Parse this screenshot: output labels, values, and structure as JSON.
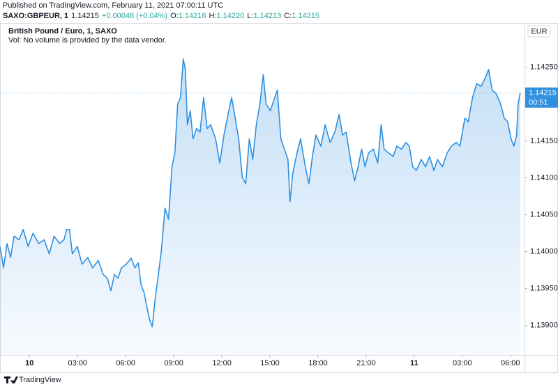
{
  "published": "Published on TradingView.com, February 11, 2021 07:00:11 UTC",
  "legend": {
    "symbol": "SAXO:GBPEUR, 1",
    "last": "1.14215",
    "change": "+0.00048 (+0.04%)",
    "ohlc": [
      {
        "key": "O:",
        "value": "1.14216"
      },
      {
        "key": "H:",
        "value": "1.14220"
      },
      {
        "key": "L:",
        "value": "1.14213"
      },
      {
        "key": "C:",
        "value": "1.14215"
      }
    ]
  },
  "brand": "TradingView",
  "chart_data": {
    "type": "area",
    "title": "British Pound / Euro, 1, SAXO",
    "subtitle": "Vol: No volume is provided by the data vendor.",
    "currency": "EUR",
    "color": "#2f8fe0",
    "price_line": {
      "value": 1.14215,
      "label": "1.14215",
      "countdown": "00:51"
    },
    "x": [
      -1.84,
      -1.62,
      -1.4,
      -1.18,
      -0.96,
      -0.66,
      -0.39,
      -0.09,
      0.22,
      0.57,
      0.92,
      1.23,
      1.53,
      1.88,
      2.15,
      2.32,
      2.5,
      2.67,
      2.98,
      3.28,
      3.63,
      3.94,
      4.29,
      4.6,
      4.86,
      5.08,
      5.3,
      5.52,
      5.74,
      6.04,
      6.35,
      6.57,
      6.79,
      6.96,
      7.14,
      7.31,
      7.49,
      7.66,
      7.84,
      8.01,
      8.23,
      8.45,
      8.67,
      8.89,
      9.07,
      9.24,
      9.42,
      9.59,
      9.72,
      9.85,
      10.03,
      10.2,
      10.42,
      10.64,
      10.86,
      11.08,
      11.3,
      11.61,
      11.87,
      12.13,
      12.39,
      12.61,
      12.83,
      13.05,
      13.27,
      13.49,
      13.71,
      13.93,
      14.15,
      14.37,
      14.58,
      14.76,
      15.02,
      15.24,
      15.46,
      15.68,
      15.9,
      16.12,
      16.25,
      16.42,
      16.69,
      16.91,
      17.21,
      17.43,
      17.65,
      17.87,
      18.18,
      18.44,
      18.75,
      19.05,
      19.31,
      19.53,
      19.75,
      20.06,
      20.28,
      20.5,
      20.72,
      20.93,
      21.15,
      21.46,
      21.72,
      21.94,
      22.12,
      22.38,
      22.69,
      22.91,
      23.21,
      23.48,
      23.69,
      23.91,
      24.13,
      24.44,
      24.7,
      24.96,
      25.23,
      25.45,
      25.75,
      26.06,
      26.32,
      26.63,
      26.85,
      27.16,
      27.37,
      27.64,
      27.9,
      28.16,
      28.38,
      28.64,
      28.86,
      29.12,
      29.39,
      29.61,
      29.83,
      30.04,
      30.22,
      30.39,
      30.48,
      30.61
    ],
    "values": [
      1.14007,
      1.13978,
      1.14011,
      1.13992,
      1.14021,
      1.14016,
      1.1403,
      1.14007,
      1.14025,
      1.14011,
      1.14016,
      1.13997,
      1.14021,
      1.14011,
      1.14016,
      1.1403,
      1.1403,
      1.13997,
      1.14007,
      1.13983,
      1.13992,
      1.13978,
      1.13988,
      1.13969,
      1.13964,
      1.13947,
      1.13969,
      1.13964,
      1.13978,
      1.13983,
      1.13991,
      1.13978,
      1.13985,
      1.13955,
      1.13945,
      1.13926,
      1.13908,
      1.13898,
      1.13936,
      1.13964,
      1.14002,
      1.14059,
      1.14044,
      1.14115,
      1.14134,
      1.142,
      1.14209,
      1.14261,
      1.14247,
      1.14172,
      1.14191,
      1.14153,
      1.14167,
      1.14162,
      1.14209,
      1.14167,
      1.14172,
      1.14153,
      1.1412,
      1.14158,
      1.14186,
      1.14209,
      1.14181,
      1.14153,
      1.14101,
      1.14092,
      1.14153,
      1.14125,
      1.14172,
      1.142,
      1.1424,
      1.142,
      1.14191,
      1.14205,
      1.14219,
      1.14153,
      1.14139,
      1.14125,
      1.14068,
      1.14106,
      1.14134,
      1.14153,
      1.14115,
      1.14092,
      1.14129,
      1.14158,
      1.14143,
      1.14172,
      1.14148,
      1.14162,
      1.14186,
      1.14158,
      1.14162,
      1.1412,
      1.14096,
      1.14115,
      1.14139,
      1.14115,
      1.14134,
      1.14139,
      1.1412,
      1.14172,
      1.14139,
      1.14134,
      1.14129,
      1.14143,
      1.14139,
      1.14148,
      1.14143,
      1.14115,
      1.1411,
      1.14125,
      1.14115,
      1.14129,
      1.1411,
      1.14125,
      1.14115,
      1.14134,
      1.14143,
      1.14148,
      1.14143,
      1.14181,
      1.14176,
      1.14209,
      1.14228,
      1.14224,
      1.14233,
      1.14247,
      1.14219,
      1.14214,
      1.142,
      1.14181,
      1.14176,
      1.14153,
      1.14143,
      1.14158,
      1.142,
      1.14215
    ],
    "xlim": [
      -1.84,
      30.88
    ],
    "xticks": [
      {
        "value": 0,
        "label": "10"
      },
      {
        "value": 3,
        "label": "03:00"
      },
      {
        "value": 6,
        "label": "06:00"
      },
      {
        "value": 9,
        "label": "09:00"
      },
      {
        "value": 12,
        "label": "12:00"
      },
      {
        "value": 15,
        "label": "15:00"
      },
      {
        "value": 18,
        "label": "18:00"
      },
      {
        "value": 21,
        "label": "21:00"
      },
      {
        "value": 24,
        "label": "11"
      },
      {
        "value": 27,
        "label": "03:00"
      },
      {
        "value": 30,
        "label": "06:00"
      }
    ],
    "ylim": [
      1.1386,
      1.1431
    ],
    "yticks": [
      {
        "value": 1.139,
        "label": "1.13900"
      },
      {
        "value": 1.1395,
        "label": "1.13950"
      },
      {
        "value": 1.14,
        "label": "1.14000"
      },
      {
        "value": 1.1405,
        "label": "1.14050"
      },
      {
        "value": 1.141,
        "label": "1.14100"
      },
      {
        "value": 1.1415,
        "label": "1.14150"
      },
      {
        "value": 1.142,
        "label": "1.14200"
      },
      {
        "value": 1.1425,
        "label": "1.14250"
      }
    ]
  }
}
